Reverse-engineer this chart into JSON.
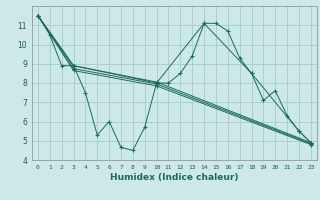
{
  "xlabel": "Humidex (Indice chaleur)",
  "xlim": [
    -0.5,
    23.5
  ],
  "ylim": [
    4,
    12
  ],
  "yticks": [
    4,
    5,
    6,
    7,
    8,
    9,
    10,
    11
  ],
  "xticks": [
    0,
    1,
    2,
    3,
    4,
    5,
    6,
    7,
    8,
    9,
    10,
    11,
    12,
    13,
    14,
    15,
    16,
    17,
    18,
    19,
    20,
    21,
    22,
    23
  ],
  "bg_color": "#cce8e8",
  "grid_color": "#aacece",
  "line_color": "#1a6b5a",
  "series": [
    {
      "x": [
        0,
        1,
        2,
        3,
        4,
        5,
        6,
        7,
        8,
        9,
        10,
        11,
        12,
        13,
        14,
        15,
        16,
        17,
        18,
        19,
        20,
        21,
        22,
        23
      ],
      "y": [
        11.5,
        10.5,
        8.9,
        8.9,
        7.5,
        5.3,
        6.0,
        4.65,
        4.5,
        5.7,
        8.0,
        8.0,
        8.5,
        9.4,
        11.1,
        11.1,
        10.7,
        9.3,
        8.5,
        7.1,
        7.6,
        6.3,
        5.5,
        4.9
      ]
    },
    {
      "x": [
        0,
        3,
        10,
        14,
        18,
        22,
        23
      ],
      "y": [
        11.5,
        8.9,
        8.0,
        11.1,
        8.5,
        5.5,
        4.9
      ]
    },
    {
      "x": [
        0,
        3,
        10,
        23
      ],
      "y": [
        11.5,
        8.9,
        8.05,
        4.9
      ]
    },
    {
      "x": [
        0,
        3,
        10,
        23
      ],
      "y": [
        11.5,
        8.75,
        7.95,
        4.85
      ]
    },
    {
      "x": [
        0,
        3,
        10,
        23
      ],
      "y": [
        11.5,
        8.65,
        7.85,
        4.8
      ]
    }
  ]
}
